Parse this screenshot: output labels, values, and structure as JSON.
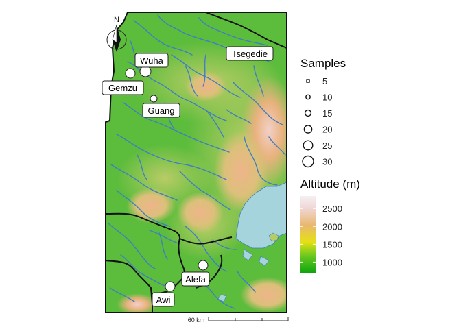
{
  "north_arrow": {
    "label": "N"
  },
  "sites": [
    {
      "name": "Wuha",
      "samples": 20
    },
    {
      "name": "Gemzu",
      "samples": 15
    },
    {
      "name": "Guang",
      "samples": 10
    },
    {
      "name": "Tsegedie",
      "samples": 5
    },
    {
      "name": "Alefa",
      "samples": 15
    },
    {
      "name": "Awi",
      "samples": 15
    }
  ],
  "legend_samples": {
    "title": "Samples",
    "items": [
      {
        "label": "5",
        "value": 5
      },
      {
        "label": "10",
        "value": 10
      },
      {
        "label": "15",
        "value": 15
      },
      {
        "label": "20",
        "value": 20
      },
      {
        "label": "25",
        "value": 25
      },
      {
        "label": "30",
        "value": 30
      }
    ]
  },
  "legend_altitude": {
    "title": "Altitude (m)",
    "ticks": [
      {
        "label": "2500",
        "value": 2500
      },
      {
        "label": "2000",
        "value": 2000
      },
      {
        "label": "1500",
        "value": 1500
      },
      {
        "label": "1000",
        "value": 1000
      }
    ],
    "range": [
      700,
      2850
    ],
    "colors": [
      "#0ea50e",
      "#6ac820",
      "#e5e012",
      "#e8b870",
      "#f0d8d8",
      "#f4f0f2"
    ]
  },
  "scale_bar": {
    "label": "60 km"
  },
  "colors": {
    "lowland": "#5cbc3c",
    "midland": "#b8cc66",
    "highland": "#e8b482",
    "water": "#a6d4dc",
    "river": "#3f7ec4",
    "border": "#111111"
  }
}
